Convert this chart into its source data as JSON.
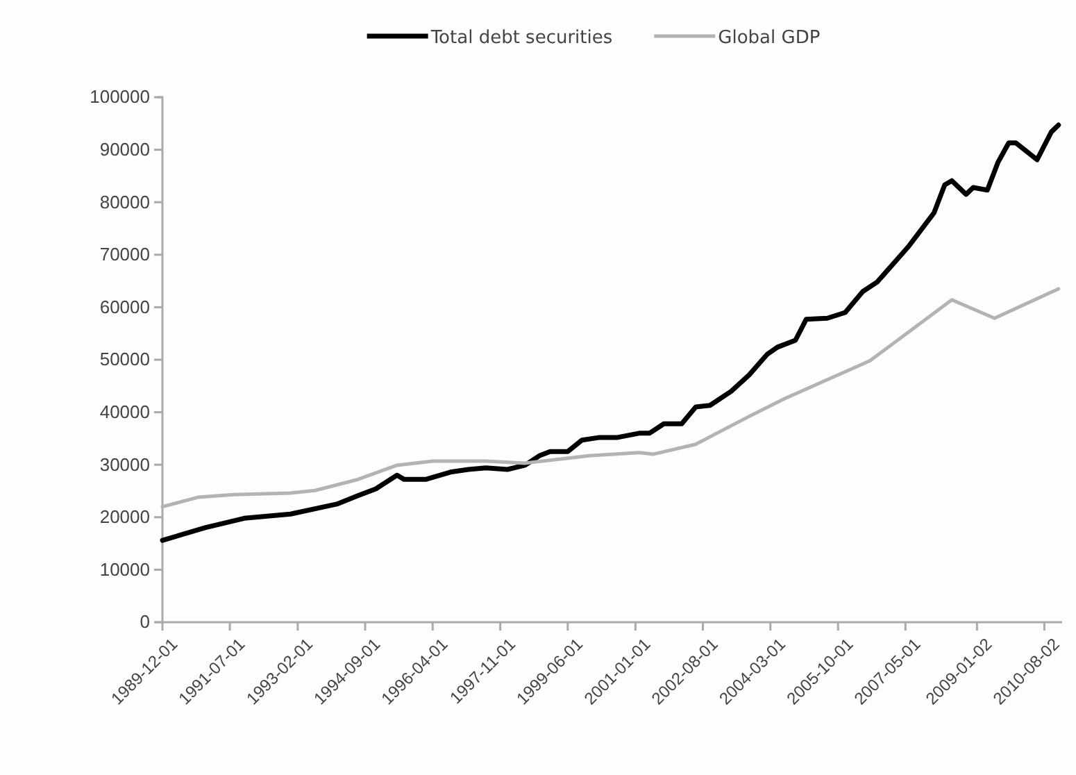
{
  "chart_data": {
    "type": "line",
    "legend": "top",
    "grid": false,
    "marker": "none",
    "line_style": "solid",
    "x": [
      "1989-12",
      "1990-12",
      "1991-11",
      "1992-12",
      "1994-01",
      "1994-07",
      "1994-12",
      "1995-06",
      "1995-08",
      "1996-02",
      "1996-09",
      "1997-02",
      "1997-07",
      "1998-01",
      "1998-06",
      "1998-10",
      "1999-01",
      "1999-06",
      "1999-10",
      "2000-03",
      "2000-08",
      "2001-02",
      "2001-05",
      "2001-09",
      "2002-02",
      "2002-06",
      "2002-10",
      "2003-04",
      "2003-09",
      "2004-02",
      "2004-05",
      "2004-10",
      "2005-01",
      "2005-07",
      "2005-12",
      "2006-05",
      "2006-09",
      "2007-06",
      "2008-01",
      "2008-04",
      "2008-06",
      "2008-10",
      "2008-12",
      "2009-04",
      "2009-07",
      "2009-10",
      "2009-12",
      "2010-06",
      "2010-10",
      "2010-12"
    ],
    "series": [
      {
        "name": "Total debt securities",
        "color": "#000000",
        "values": [
          15600,
          18000,
          19800,
          20600,
          22500,
          24100,
          25400,
          28000,
          27200,
          27200,
          28600,
          29100,
          29400,
          29100,
          29900,
          31700,
          32500,
          32500,
          34700,
          35200,
          35200,
          36000,
          36000,
          37800,
          37800,
          41000,
          41300,
          44000,
          47100,
          51000,
          52400,
          53700,
          57700,
          57900,
          59000,
          63000,
          64800,
          71700,
          78000,
          83300,
          84100,
          81500,
          82800,
          82300,
          87600,
          91300,
          91300,
          88100,
          93400,
          94700
        ]
      },
      {
        "name": "Global GDP",
        "color": "#b3b3b3",
        "x": [
          "1989-12",
          "1990-10",
          "1991-08",
          "1992-12",
          "1993-07",
          "1994-07",
          "1995-06",
          "1996-04",
          "1997-07",
          "1998-06",
          "1999-12",
          "2001-02",
          "2001-06",
          "2002-06",
          "2003-09",
          "2004-07",
          "2006-07",
          "2008-06",
          "2009-06",
          "2010-12"
        ],
        "values": [
          22000,
          23800,
          24300,
          24600,
          25100,
          27200,
          29900,
          30700,
          30700,
          30300,
          31700,
          32300,
          32000,
          33900,
          39200,
          42600,
          49800,
          61400,
          57900,
          63500
        ]
      }
    ],
    "xlim": [
      "1989-12-01",
      "2011-01-01"
    ],
    "xticks": [
      {
        "value": "1989-12-01",
        "label": "1989-12-01"
      },
      {
        "value": "1991-07-01",
        "label": "1991-07-01"
      },
      {
        "value": "1993-02-01",
        "label": "1993-02-01"
      },
      {
        "value": "1994-09-01",
        "label": "1994-09-01"
      },
      {
        "value": "1996-04-01",
        "label": "1996-04-01"
      },
      {
        "value": "1997-11-01",
        "label": "1997-11-01"
      },
      {
        "value": "1999-06-01",
        "label": "1999-06-01"
      },
      {
        "value": "2001-01-01",
        "label": "2001-01-01"
      },
      {
        "value": "2002-08-01",
        "label": "2002-08-01"
      },
      {
        "value": "2004-03-01",
        "label": "2004-03-01"
      },
      {
        "value": "2005-10-01",
        "label": "2005-10-01"
      },
      {
        "value": "2007-05-01",
        "label": "2007-05-01"
      },
      {
        "value": "2009-01-02",
        "label": "2009-01-02"
      },
      {
        "value": "2010-08-02",
        "label": "2010-08-02"
      }
    ],
    "ylim": [
      0,
      100000
    ],
    "yticks": [
      0,
      10000,
      20000,
      30000,
      40000,
      50000,
      60000,
      70000,
      80000,
      90000,
      100000
    ]
  }
}
